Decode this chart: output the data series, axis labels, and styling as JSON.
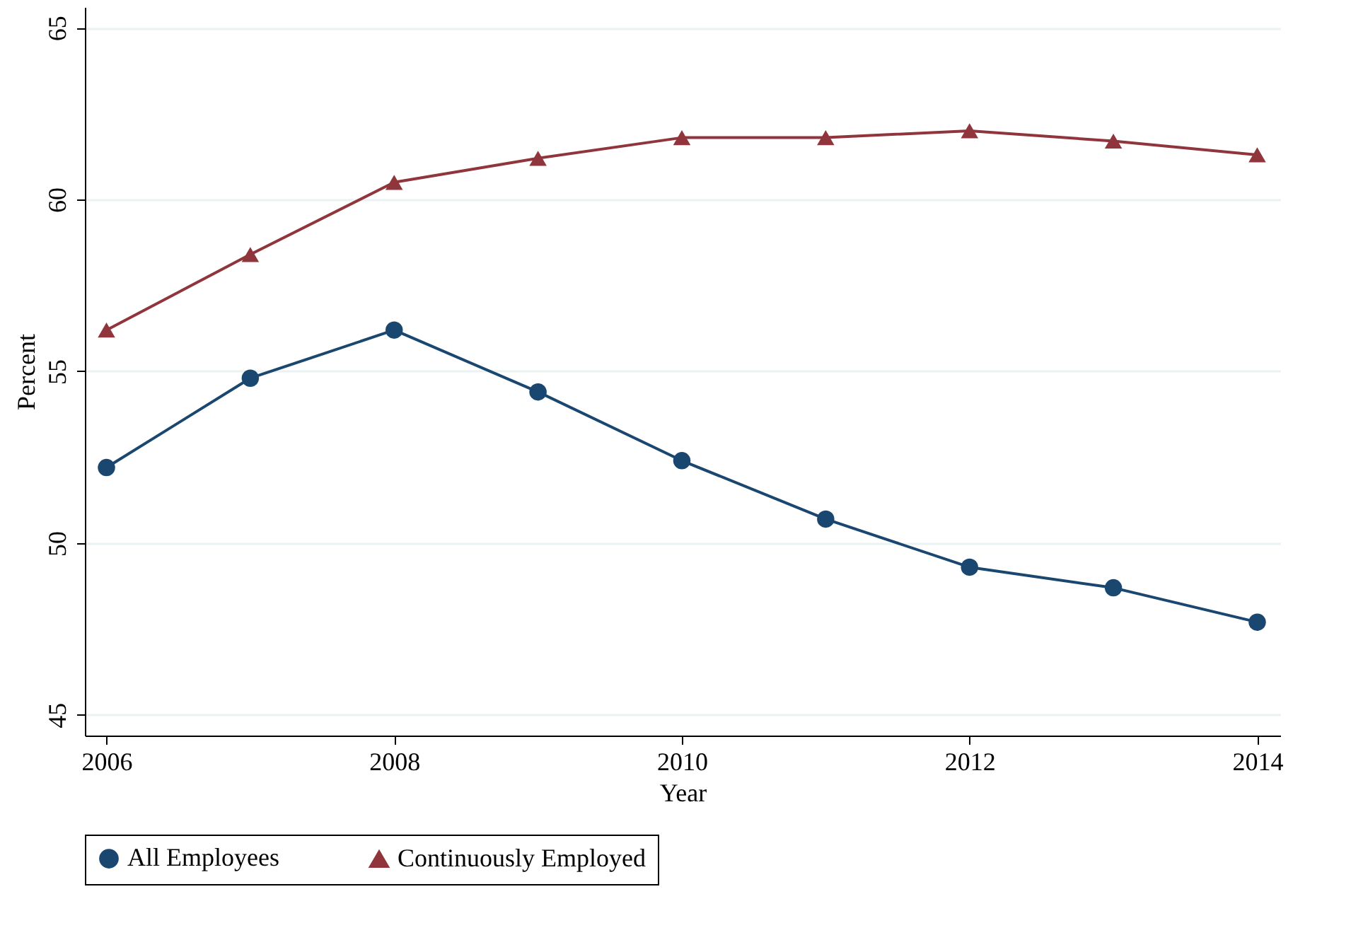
{
  "chart_data": {
    "type": "line",
    "xlabel": "Year",
    "ylabel": "Percent",
    "x": [
      2006,
      2007,
      2008,
      2009,
      2010,
      2011,
      2012,
      2013,
      2014
    ],
    "series": [
      {
        "name": "All Employees",
        "color": "#1a476f",
        "marker": "circle",
        "values": [
          52.2,
          54.8,
          56.2,
          54.4,
          52.4,
          50.7,
          49.3,
          48.7,
          47.7
        ]
      },
      {
        "name": "Continuously Employed",
        "color": "#90353b",
        "marker": "triangle",
        "values": [
          56.2,
          58.4,
          60.5,
          61.2,
          61.8,
          61.8,
          62.0,
          61.7,
          61.3
        ]
      }
    ],
    "xlim": [
      2005.85,
      2014.16
    ],
    "xticks": [
      2006,
      2008,
      2010,
      2012,
      2014
    ],
    "ylim": [
      44.4,
      65.6
    ],
    "yticks": [
      45,
      50,
      55,
      60,
      65
    ],
    "grid": "y",
    "legend": "bottom",
    "line_style": "solid"
  }
}
